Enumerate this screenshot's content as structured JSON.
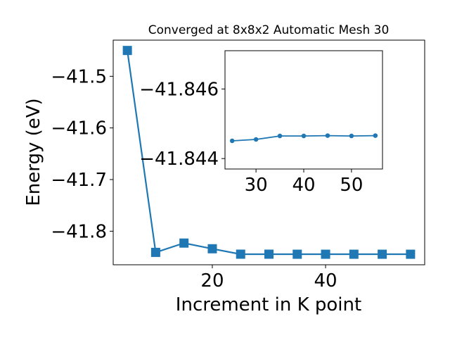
{
  "chart_data": [
    {
      "type": "line",
      "title": "Converged at 8x8x2 Automatic Mesh 30",
      "xlabel": "Increment in K point",
      "ylabel": "Energy (eV)",
      "x": [
        5,
        10,
        15,
        20,
        25,
        30,
        35,
        40,
        45,
        50,
        55
      ],
      "series": [
        {
          "values": [
            -41.45,
            -41.841,
            -41.823,
            -41.834,
            -41.8445,
            -41.8445,
            -41.8446,
            -41.8446,
            -41.8446,
            -41.8446,
            -41.8446
          ],
          "color": "#1f77b4",
          "marker": "square"
        }
      ],
      "xlim": [
        2.5,
        57.5
      ],
      "ylim": [
        -41.865,
        -41.43
      ],
      "xticks": [
        20,
        40
      ],
      "xtick_labels": [
        "20",
        "40"
      ],
      "yticks": [
        -41.5,
        -41.6,
        -41.7,
        -41.8
      ],
      "ytick_labels": [
        "−41.5",
        "−41.6",
        "−41.7",
        "−41.8"
      ],
      "grid": false
    },
    {
      "type": "line",
      "title": "",
      "xlabel": "",
      "ylabel": "",
      "x": [
        25,
        30,
        35,
        40,
        45,
        50,
        55
      ],
      "series": [
        {
          "values": [
            -41.84451,
            -41.84455,
            -41.84465,
            -41.84465,
            -41.84466,
            -41.84465,
            -41.84466
          ],
          "color": "#1f77b4",
          "marker": "circle"
        }
      ],
      "xlim": [
        23.5,
        56.5
      ],
      "ylim": [
        -41.8437,
        -41.8471
      ],
      "y_inverted": true,
      "xticks": [
        30,
        40,
        50
      ],
      "xtick_labels": [
        "30",
        "40",
        "50"
      ],
      "yticks": [
        -41.846,
        -41.844
      ],
      "ytick_labels": [
        "−41.846",
        "−41.844"
      ],
      "grid": false
    }
  ]
}
